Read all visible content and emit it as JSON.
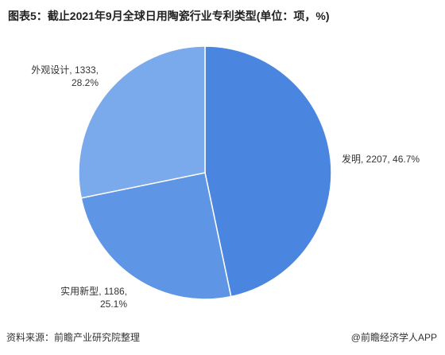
{
  "chart_data": {
    "type": "pie",
    "title": "图表5：截止2021年9月全球日用陶瓷行业专利类型(单位：项，%)",
    "categories": [
      "发明",
      "实用新型",
      "外观设计"
    ],
    "values": [
      2207,
      1186,
      1333
    ],
    "value_labels": [
      ", 2207, 46.7%",
      ", 1186,\n25.1%",
      ", 1333,\n28.2%"
    ],
    "colors": [
      "#4a86e0",
      "#5f95e5",
      "#7aa9ec"
    ],
    "source": "资料来源：前瞻产业研究院整理",
    "credit": "@前瞻经济学人APP"
  }
}
